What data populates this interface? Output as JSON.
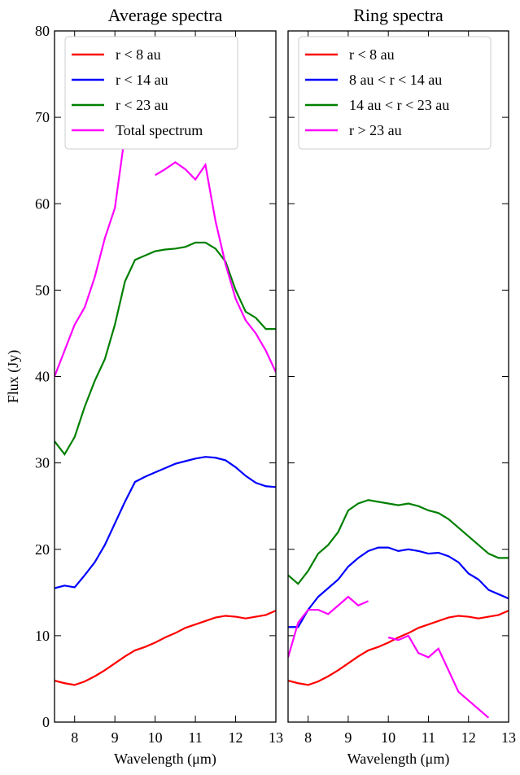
{
  "chart_data": [
    {
      "type": "line",
      "title": "Average spectra",
      "xlabel": "Wavelength (μm)",
      "ylabel": "Flux (Jy)",
      "x": [
        7.5,
        7.75,
        8,
        8.25,
        8.5,
        8.75,
        9,
        9.25,
        9.5,
        9.75,
        10,
        10.25,
        10.5,
        10.75,
        11,
        11.25,
        11.5,
        11.75,
        12,
        12.25,
        12.5,
        12.75,
        13
      ],
      "series": [
        {
          "name": "r < 8 au",
          "color": "#ff0000",
          "values": [
            4.8,
            4.5,
            4.3,
            4.7,
            5.3,
            6.0,
            6.8,
            7.6,
            8.3,
            8.7,
            9.2,
            9.8,
            10.3,
            10.9,
            11.3,
            11.7,
            12.1,
            12.3,
            12.2,
            12.0,
            12.2,
            12.4,
            12.9
          ]
        },
        {
          "name": "r < 14 au",
          "color": "#0000ff",
          "values": [
            15.5,
            15.8,
            15.6,
            17,
            18.5,
            20.5,
            23,
            25.5,
            27.8,
            28.4,
            28.9,
            29.4,
            29.9,
            30.2,
            30.5,
            30.7,
            30.6,
            30.3,
            29.5,
            28.5,
            27.7,
            27.3,
            27.2
          ]
        },
        {
          "name": "r < 23 au",
          "color": "#008000",
          "values": [
            32.5,
            31,
            33,
            36.5,
            39.5,
            42,
            46,
            51,
            53.5,
            54,
            54.5,
            54.7,
            54.8,
            55,
            55.5,
            55.5,
            54.8,
            53.3,
            50,
            47.5,
            46.8,
            45.5,
            45.5
          ]
        },
        {
          "name": "Total spectrum",
          "color": "#ff00ff",
          "values": [
            40,
            43,
            46,
            48,
            51.5,
            56,
            59.5,
            68,
            null,
            null,
            63.3,
            64,
            64.8,
            64,
            62.8,
            64.5,
            58,
            53,
            49,
            46.5,
            45,
            43,
            40.5
          ]
        }
      ],
      "xlim": [
        7.5,
        13
      ],
      "ylim": [
        0,
        80
      ],
      "xticks": [
        8,
        9,
        10,
        11,
        12,
        13
      ],
      "yticks": [
        0,
        10,
        20,
        30,
        40,
        50,
        60,
        70,
        80
      ],
      "ytick_labels": true,
      "legend": "upper left"
    },
    {
      "type": "line",
      "title": "Ring spectra",
      "xlabel": "Wavelength (μm)",
      "x": [
        7.5,
        7.75,
        8,
        8.25,
        8.5,
        8.75,
        9,
        9.25,
        9.5,
        9.75,
        10,
        10.25,
        10.5,
        10.75,
        11,
        11.25,
        11.5,
        11.75,
        12,
        12.25,
        12.5,
        12.75,
        13
      ],
      "series": [
        {
          "name": "r < 8 au",
          "color": "#ff0000",
          "values": [
            4.8,
            4.5,
            4.3,
            4.7,
            5.3,
            6.0,
            6.8,
            7.6,
            8.3,
            8.7,
            9.2,
            9.8,
            10.3,
            10.9,
            11.3,
            11.7,
            12.1,
            12.3,
            12.2,
            12.0,
            12.2,
            12.4,
            12.9
          ]
        },
        {
          "name": "8 au < r < 14 au",
          "color": "#0000ff",
          "values": [
            11,
            11,
            13,
            14.5,
            15.5,
            16.5,
            18,
            19,
            19.8,
            20.2,
            20.2,
            19.8,
            20,
            19.8,
            19.5,
            19.6,
            19.2,
            18.5,
            17.2,
            16.5,
            15.3,
            14.8,
            14.3
          ]
        },
        {
          "name": "14 au < r < 23 au",
          "color": "#008000",
          "values": [
            17,
            16,
            17.5,
            19.5,
            20.5,
            22,
            24.5,
            25.3,
            25.7,
            25.5,
            25.3,
            25.1,
            25.3,
            25,
            24.5,
            24.2,
            23.5,
            22.5,
            21.5,
            20.5,
            19.5,
            19,
            19
          ]
        },
        {
          "name": "r > 23 au",
          "color": "#ff00ff",
          "values": [
            7.5,
            11.5,
            13,
            13,
            12.5,
            13.5,
            14.5,
            13.5,
            14,
            null,
            9.8,
            9.5,
            10,
            8,
            7.5,
            8.5,
            6,
            3.5,
            2.5,
            1.5,
            0.5,
            null,
            null
          ]
        }
      ],
      "xlim": [
        7.5,
        13
      ],
      "ylim": [
        0,
        80
      ],
      "xticks": [
        8,
        9,
        10,
        11,
        12,
        13
      ],
      "yticks": [
        0,
        10,
        20,
        30,
        40,
        50,
        60,
        70,
        80
      ],
      "ytick_labels": false,
      "legend": "upper left"
    }
  ]
}
